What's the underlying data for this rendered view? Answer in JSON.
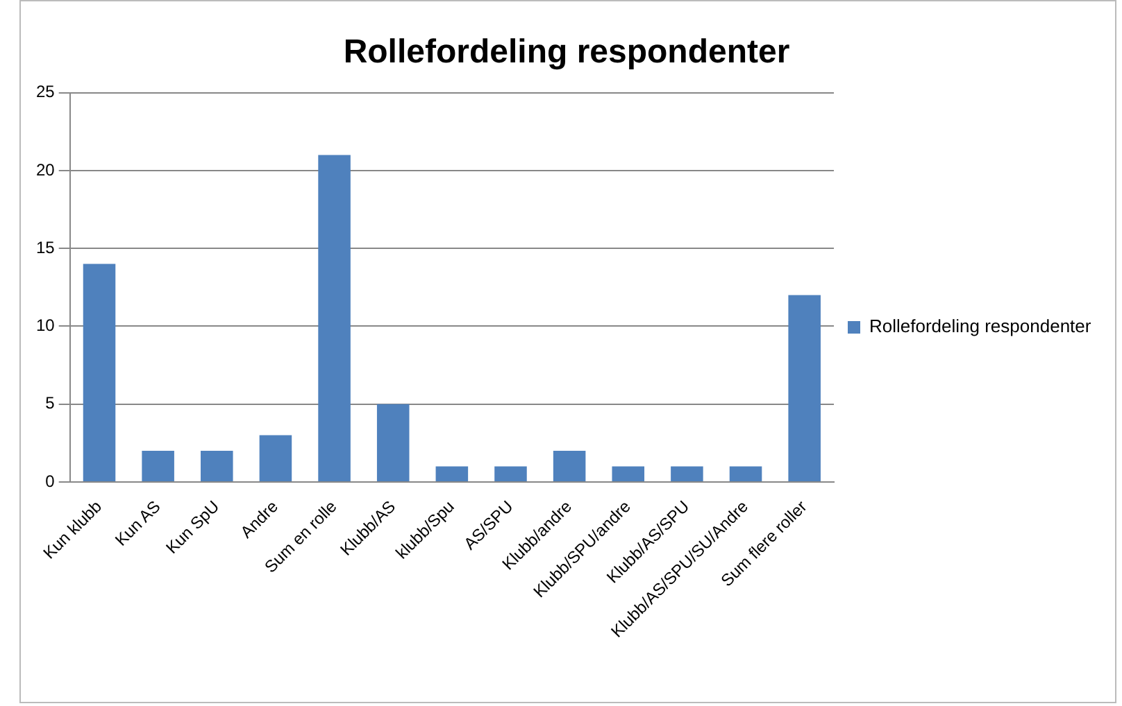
{
  "chart_data": {
    "type": "bar",
    "title": "Rollefordeling respondenter",
    "categories": [
      "Kun klubb",
      "Kun AS",
      "Kun SpU",
      "Andre",
      "Sum en rolle",
      "Klubb/AS",
      "klubb/Spu",
      "AS/SPU",
      "Klubb/andre",
      "Klubb/SPU/andre",
      "Klubb/AS/SPU",
      "Klubb/AS/SPU/SU/Andre",
      "Sum flere roller"
    ],
    "series": [
      {
        "name": "Rollefordeling respondenter",
        "color": "#4f81bd",
        "values": [
          14,
          2,
          2,
          3,
          21,
          5,
          1,
          1,
          2,
          1,
          1,
          1,
          12
        ]
      }
    ],
    "ylim": [
      0,
      25
    ],
    "yticks": [
      0,
      5,
      10,
      15,
      20,
      25
    ],
    "grid": "y",
    "legend": "right"
  }
}
